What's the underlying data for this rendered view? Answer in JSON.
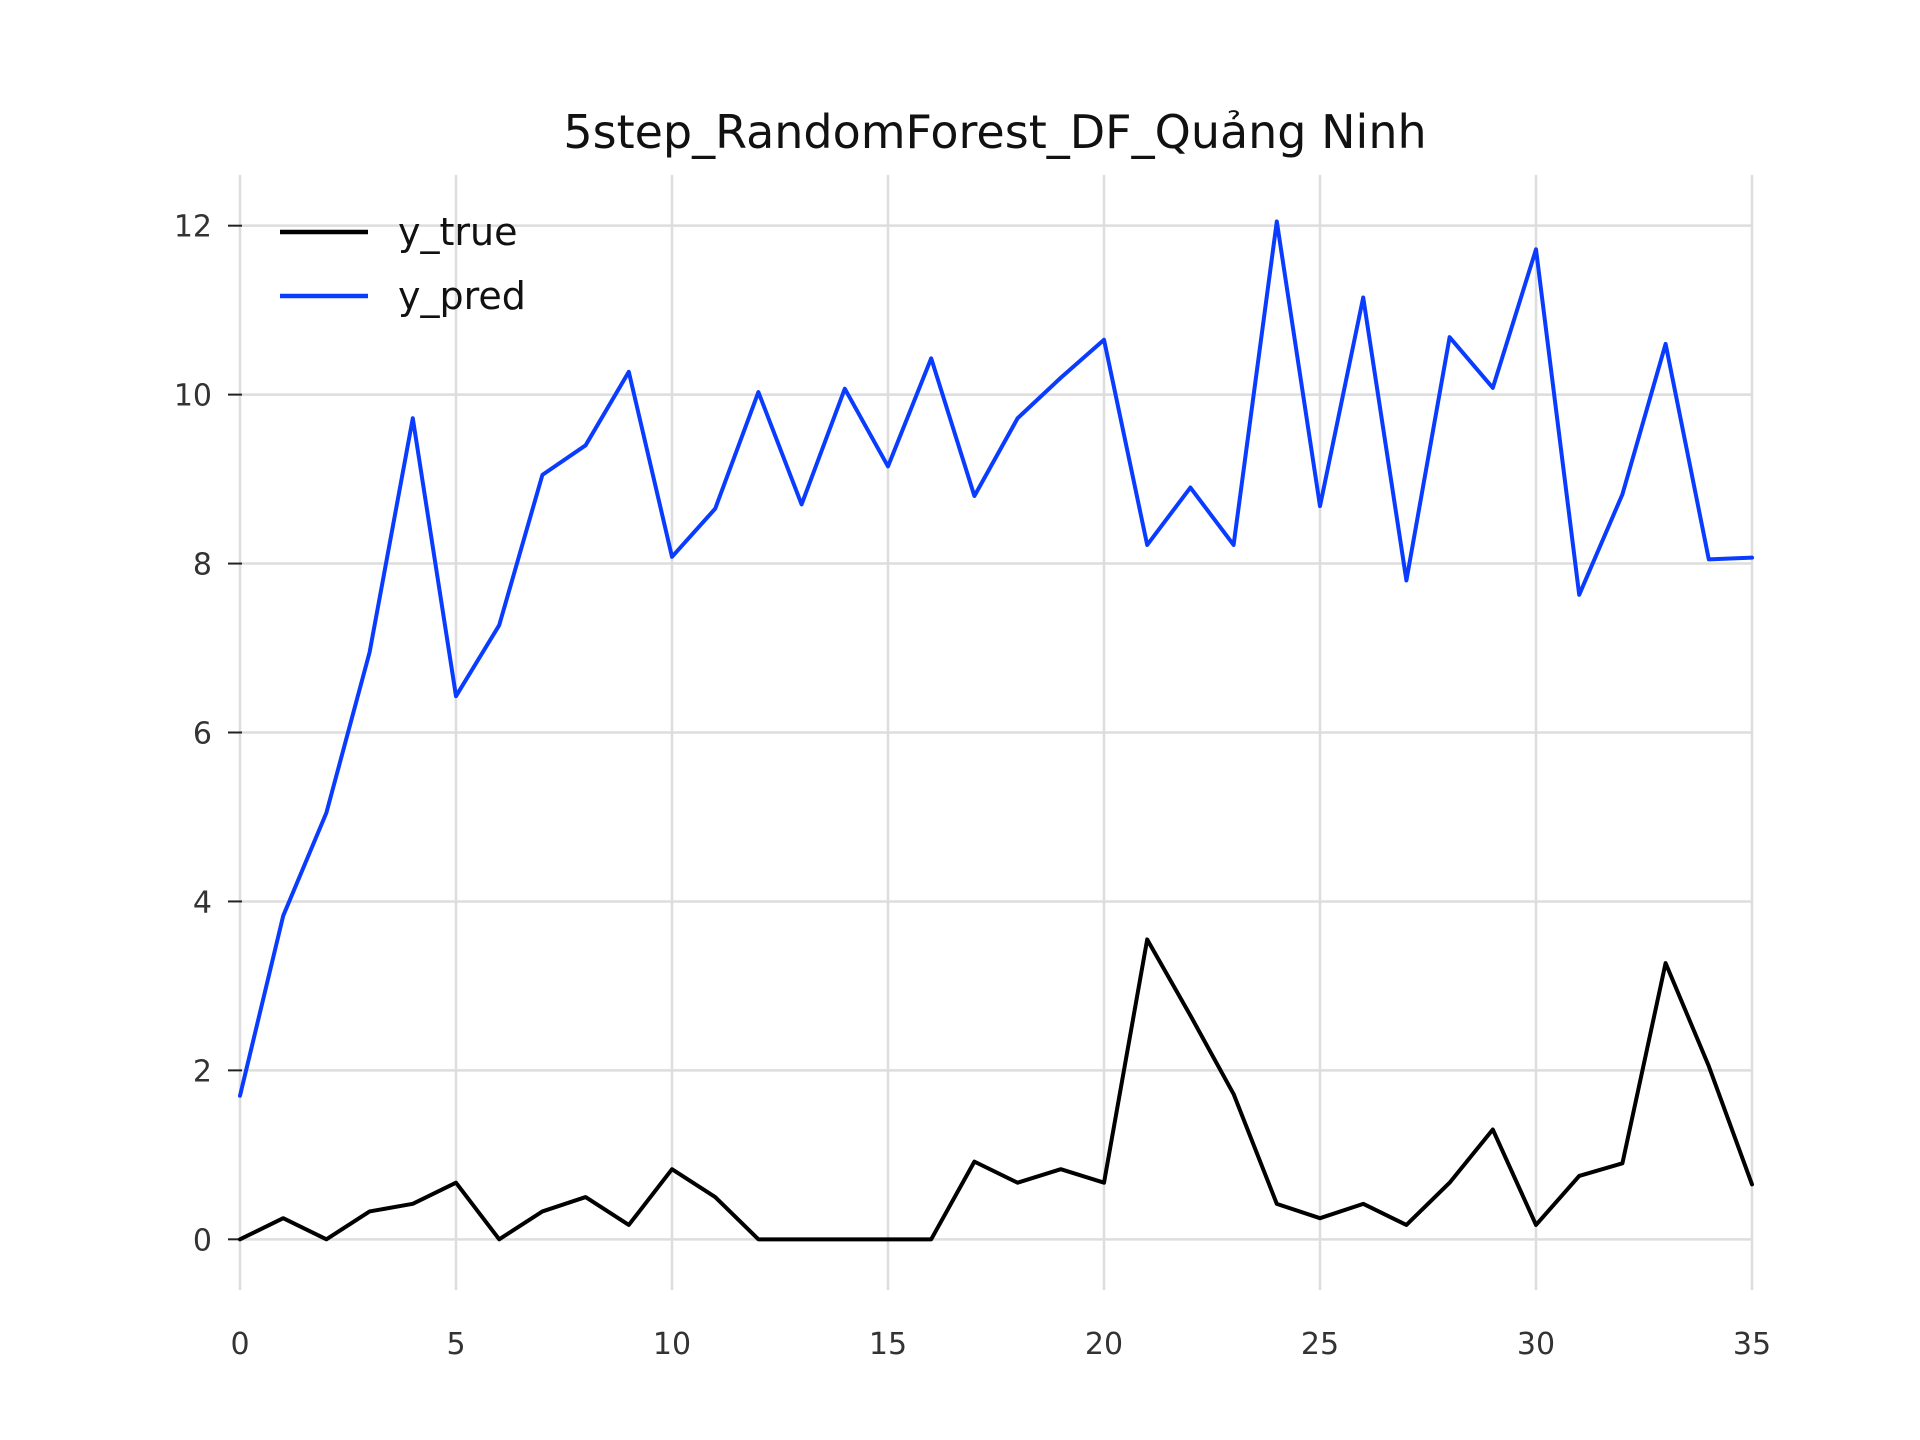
{
  "chart_data": {
    "type": "line",
    "title": "5step_RandomForest_DF_Quảng Ninh",
    "xlabel": "",
    "ylabel": "",
    "xlim": [
      0,
      35
    ],
    "ylim": [
      -0.6,
      12.6
    ],
    "x_ticks": [
      0,
      5,
      10,
      15,
      20,
      25,
      30,
      35
    ],
    "y_ticks": [
      0,
      2,
      4,
      6,
      8,
      10,
      12
    ],
    "grid": true,
    "legend_position": "top-left",
    "x": [
      0,
      1,
      2,
      3,
      4,
      5,
      6,
      7,
      8,
      9,
      10,
      11,
      12,
      13,
      14,
      15,
      16,
      17,
      18,
      19,
      20,
      21,
      22,
      23,
      24,
      25,
      26,
      27,
      28,
      29,
      30,
      31,
      32,
      33,
      34,
      35
    ],
    "series": [
      {
        "name": "y_true",
        "color": "#000000",
        "values": [
          0,
          0.25,
          0,
          0.33,
          0.42,
          0.67,
          0,
          0.33,
          0.5,
          0.17,
          0.83,
          0.5,
          0,
          0,
          0,
          0,
          0,
          0.92,
          0.67,
          0.83,
          0.67,
          3.55,
          2.65,
          1.72,
          0.42,
          0.25,
          0.42,
          0.17,
          0.67,
          1.3,
          0.17,
          0.75,
          0.9,
          3.27,
          2.05,
          0.65
        ]
      },
      {
        "name": "y_pred",
        "color": "#0a3cff",
        "values": [
          1.7,
          3.83,
          5.05,
          6.95,
          9.72,
          6.43,
          7.27,
          9.05,
          9.4,
          10.27,
          8.08,
          8.65,
          10.03,
          8.7,
          10.07,
          9.15,
          10.43,
          8.8,
          9.72,
          10.2,
          10.65,
          8.22,
          8.9,
          8.22,
          12.05,
          8.68,
          11.15,
          7.8,
          10.68,
          10.08,
          11.72,
          7.63,
          8.82,
          10.6,
          8.05,
          8.07
        ]
      }
    ]
  }
}
